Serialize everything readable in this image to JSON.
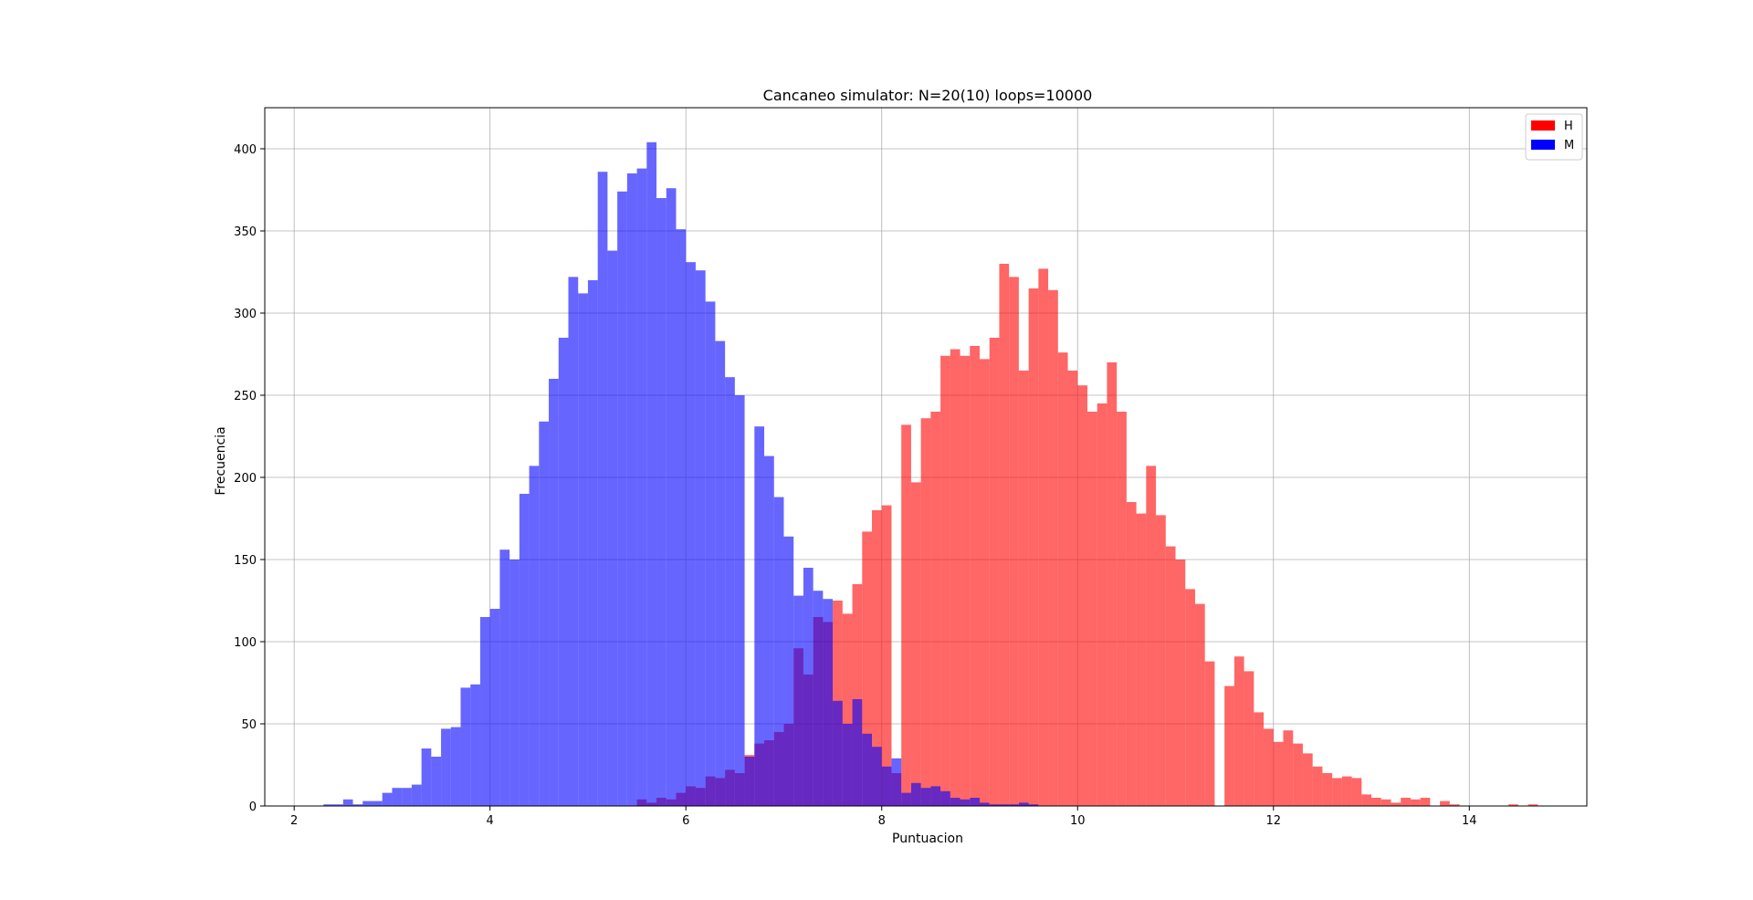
{
  "chart_data": {
    "type": "bar",
    "title": "Cancaneo simulator: N=20(10) loops=10000",
    "xlabel": "Puntuacion",
    "ylabel": "Frecuencia",
    "xlim": [
      1.7,
      15.2
    ],
    "ylim": [
      0,
      425
    ],
    "xticks": [
      2,
      4,
      6,
      8,
      10,
      12,
      14
    ],
    "yticks": [
      0,
      50,
      100,
      150,
      200,
      250,
      300,
      350,
      400
    ],
    "grid": true,
    "legend_position": "top-right",
    "bin_width": 0.1,
    "series": [
      {
        "name": "H",
        "color": "#ff0000",
        "opacity": 0.6,
        "points": [
          [
            5.5,
            4
          ],
          [
            5.6,
            2
          ],
          [
            5.7,
            5
          ],
          [
            5.8,
            4
          ],
          [
            5.9,
            8
          ],
          [
            6.0,
            12
          ],
          [
            6.1,
            11
          ],
          [
            6.2,
            18
          ],
          [
            6.3,
            17
          ],
          [
            6.4,
            22
          ],
          [
            6.5,
            20
          ],
          [
            6.6,
            31
          ],
          [
            6.7,
            38
          ],
          [
            6.8,
            40
          ],
          [
            6.9,
            45
          ],
          [
            7.0,
            50
          ],
          [
            7.1,
            96
          ],
          [
            7.2,
            80
          ],
          [
            7.3,
            115
          ],
          [
            7.4,
            112
          ],
          [
            7.5,
            125
          ],
          [
            7.6,
            117
          ],
          [
            7.7,
            135
          ],
          [
            7.8,
            167
          ],
          [
            7.9,
            180
          ],
          [
            8.0,
            183
          ],
          [
            8.1,
            20
          ],
          [
            8.2,
            232
          ],
          [
            8.3,
            197
          ],
          [
            8.4,
            236
          ],
          [
            8.5,
            240
          ],
          [
            8.6,
            274
          ],
          [
            8.7,
            278
          ],
          [
            8.8,
            274
          ],
          [
            8.9,
            280
          ],
          [
            9.0,
            272
          ],
          [
            9.1,
            285
          ],
          [
            9.2,
            330
          ],
          [
            9.3,
            322
          ],
          [
            9.4,
            265
          ],
          [
            9.5,
            315
          ],
          [
            9.6,
            327
          ],
          [
            9.7,
            314
          ],
          [
            9.8,
            276
          ],
          [
            9.9,
            265
          ],
          [
            10.0,
            256
          ],
          [
            10.1,
            240
          ],
          [
            10.2,
            245
          ],
          [
            10.3,
            270
          ],
          [
            10.4,
            240
          ],
          [
            10.5,
            185
          ],
          [
            10.6,
            178
          ],
          [
            10.7,
            207
          ],
          [
            10.8,
            177
          ],
          [
            10.9,
            158
          ],
          [
            11.0,
            150
          ],
          [
            11.1,
            132
          ],
          [
            11.2,
            123
          ],
          [
            11.3,
            88
          ],
          [
            11.5,
            73
          ],
          [
            11.6,
            91
          ],
          [
            11.7,
            82
          ],
          [
            11.8,
            57
          ],
          [
            11.9,
            47
          ],
          [
            12.0,
            39
          ],
          [
            12.1,
            46
          ],
          [
            12.2,
            38
          ],
          [
            12.3,
            32
          ],
          [
            12.4,
            24
          ],
          [
            12.5,
            20
          ],
          [
            12.6,
            17
          ],
          [
            12.7,
            18
          ],
          [
            12.8,
            17
          ],
          [
            12.9,
            7
          ],
          [
            13.0,
            5
          ],
          [
            13.1,
            4
          ],
          [
            13.2,
            2
          ],
          [
            13.3,
            5
          ],
          [
            13.4,
            4
          ],
          [
            13.5,
            5
          ],
          [
            13.7,
            3
          ],
          [
            13.8,
            1
          ],
          [
            14.4,
            1
          ],
          [
            14.6,
            1
          ]
        ]
      },
      {
        "name": "M",
        "color": "#0000ff",
        "opacity": 0.6,
        "points": [
          [
            2.3,
            1
          ],
          [
            2.4,
            1
          ],
          [
            2.5,
            4
          ],
          [
            2.6,
            1
          ],
          [
            2.7,
            3
          ],
          [
            2.8,
            3
          ],
          [
            2.9,
            8
          ],
          [
            3.0,
            11
          ],
          [
            3.1,
            11
          ],
          [
            3.2,
            13
          ],
          [
            3.3,
            35
          ],
          [
            3.4,
            30
          ],
          [
            3.5,
            47
          ],
          [
            3.6,
            48
          ],
          [
            3.7,
            72
          ],
          [
            3.8,
            74
          ],
          [
            3.9,
            115
          ],
          [
            4.0,
            120
          ],
          [
            4.1,
            156
          ],
          [
            4.2,
            150
          ],
          [
            4.3,
            190
          ],
          [
            4.4,
            207
          ],
          [
            4.5,
            234
          ],
          [
            4.6,
            260
          ],
          [
            4.7,
            285
          ],
          [
            4.8,
            322
          ],
          [
            4.9,
            312
          ],
          [
            5.0,
            320
          ],
          [
            5.1,
            386
          ],
          [
            5.2,
            338
          ],
          [
            5.3,
            374
          ],
          [
            5.4,
            385
          ],
          [
            5.5,
            388
          ],
          [
            5.6,
            404
          ],
          [
            5.7,
            370
          ],
          [
            5.8,
            376
          ],
          [
            5.9,
            351
          ],
          [
            6.0,
            331
          ],
          [
            6.1,
            326
          ],
          [
            6.2,
            307
          ],
          [
            6.3,
            283
          ],
          [
            6.4,
            261
          ],
          [
            6.5,
            250
          ],
          [
            6.6,
            30
          ],
          [
            6.7,
            231
          ],
          [
            6.8,
            213
          ],
          [
            6.9,
            188
          ],
          [
            7.0,
            164
          ],
          [
            7.1,
            128
          ],
          [
            7.2,
            145
          ],
          [
            7.3,
            131
          ],
          [
            7.4,
            126
          ],
          [
            7.5,
            64
          ],
          [
            7.6,
            50
          ],
          [
            7.7,
            65
          ],
          [
            7.8,
            44
          ],
          [
            7.9,
            36
          ],
          [
            8.0,
            24
          ],
          [
            8.1,
            29
          ],
          [
            8.2,
            8
          ],
          [
            8.3,
            14
          ],
          [
            8.4,
            11
          ],
          [
            8.5,
            12
          ],
          [
            8.6,
            9
          ],
          [
            8.7,
            5
          ],
          [
            8.8,
            4
          ],
          [
            8.9,
            5
          ],
          [
            9.0,
            2
          ],
          [
            9.1,
            1
          ],
          [
            9.2,
            1
          ],
          [
            9.3,
            1
          ],
          [
            9.4,
            2
          ],
          [
            9.5,
            1
          ]
        ]
      }
    ]
  }
}
